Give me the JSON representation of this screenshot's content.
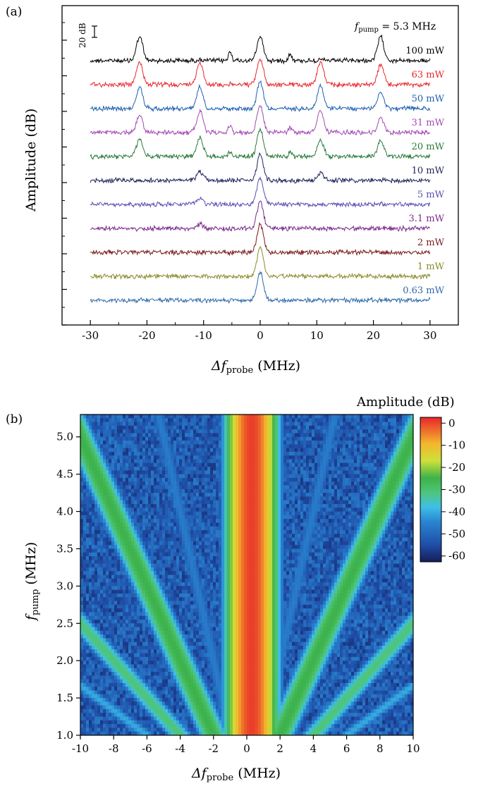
{
  "panel_a": {
    "letter": "(a)",
    "pump_label_prefix": "f",
    "pump_label_sub": "pump",
    "pump_label_value": " = 5.3 MHz",
    "scale_bar_label": "20 dB",
    "chart_data": {
      "type": "line",
      "title": "",
      "xlabel_prefix": "Δf",
      "xlabel_sub": "probe",
      "xlabel_suffix": " (MHz)",
      "ylabel": "Amplitude (dB)",
      "xlim": [
        -35,
        35
      ],
      "xticks": [
        -30,
        -20,
        -10,
        0,
        10,
        20,
        30
      ],
      "xtick_labels": [
        "-30",
        "-20",
        "-10",
        "0",
        "10",
        "20",
        "30"
      ],
      "peaks_x": [
        -21.3,
        -10.65,
        0,
        10.65,
        21.3
      ],
      "series": [
        {
          "name": "100 mW",
          "color": "#000000",
          "peaks": [
            34,
            0.98,
            34,
            0.98,
            34
          ],
          "small_peaks": [
            13,
            10
          ]
        },
        {
          "name": "63 mW",
          "color": "#e8262b",
          "peaks": [
            32,
            32,
            36,
            32,
            28
          ],
          "small_peaks": [
            0,
            0
          ]
        },
        {
          "name": "50 mW",
          "color": "#1f5fb0",
          "peaks": [
            30,
            31,
            38,
            33,
            24
          ],
          "small_peaks": [
            0,
            0
          ]
        },
        {
          "name": "31 mW",
          "color": "#a24ab2",
          "peaks": [
            24,
            31,
            38,
            30,
            20
          ],
          "small_peaks": [
            10,
            8
          ]
        },
        {
          "name": "20 mW",
          "color": "#2a7a3a",
          "peaks": [
            24,
            27,
            38,
            24,
            22
          ],
          "small_peaks": [
            7,
            6
          ]
        },
        {
          "name": "10 mW",
          "color": "#1e2458",
          "peaks": [
            0,
            12,
            38,
            10,
            0
          ],
          "small_peaks": [
            0,
            0
          ]
        },
        {
          "name": "5 mW",
          "color": "#5a4fb0",
          "peaks": [
            0,
            8,
            38,
            0,
            0
          ],
          "small_peaks": [
            0,
            0
          ]
        },
        {
          "name": "3.1 mW",
          "color": "#7a2a8a",
          "peaks": [
            0,
            6,
            38,
            0,
            0
          ],
          "small_peaks": [
            0,
            0
          ]
        },
        {
          "name": "2 mW",
          "color": "#7a1a1a",
          "peaks": [
            0,
            0,
            40,
            0,
            0
          ],
          "small_peaks": [
            0,
            0
          ]
        },
        {
          "name": "1 mW",
          "color": "#8a8a2a",
          "peaks": [
            0,
            0,
            40,
            0,
            0
          ],
          "small_peaks": [
            0,
            0
          ]
        },
        {
          "name": "0.63 mW",
          "color": "#2f6aa8",
          "peaks": [
            0,
            0,
            40,
            0,
            0
          ],
          "small_peaks": [
            0,
            0
          ]
        }
      ]
    }
  },
  "panel_b": {
    "letter": "(b)",
    "colorbar_title": "Amplitude (dB)",
    "colorbar_ticks": [
      "0",
      "-10",
      "-20",
      "-30",
      "-40",
      "-50",
      "-60"
    ],
    "chart_data": {
      "type": "heatmap",
      "title": "",
      "xlabel_prefix": "Δf",
      "xlabel_sub": "probe",
      "xlabel_suffix": " (MHz)",
      "ylabel_prefix": "f",
      "ylabel_sub": "pump",
      "ylabel_suffix": " (MHz)",
      "xlim": [
        -10,
        10
      ],
      "ylim": [
        1.0,
        5.3
      ],
      "xtick_labels": [
        "-10",
        "-8",
        "-6",
        "-4",
        "-2",
        "0",
        "2",
        "4",
        "6",
        "8",
        "10"
      ],
      "ytick_labels": [
        "1.0",
        "1.5",
        "2.0",
        "2.5",
        "3.0",
        "3.5",
        "4.0",
        "4.5",
        "5.0"
      ],
      "zlim": [
        -62,
        2
      ],
      "colorscale": [
        "#1a2a78",
        "#1f5fb8",
        "#2b90d8",
        "#39c6e8",
        "#5cd06a",
        "#3fb84a",
        "#d8e23a",
        "#f2a22a",
        "#e8302a"
      ],
      "features": [
        {
          "kind": "carrier",
          "center_x": 0.3,
          "level_db": 0
        },
        {
          "kind": "sideband",
          "order": 1,
          "relation": "x = ±2·f_pump",
          "level_db": -25
        },
        {
          "kind": "sideband",
          "order": 2,
          "relation": "x = ±4·f_pump",
          "level_db": -30
        }
      ]
    }
  }
}
